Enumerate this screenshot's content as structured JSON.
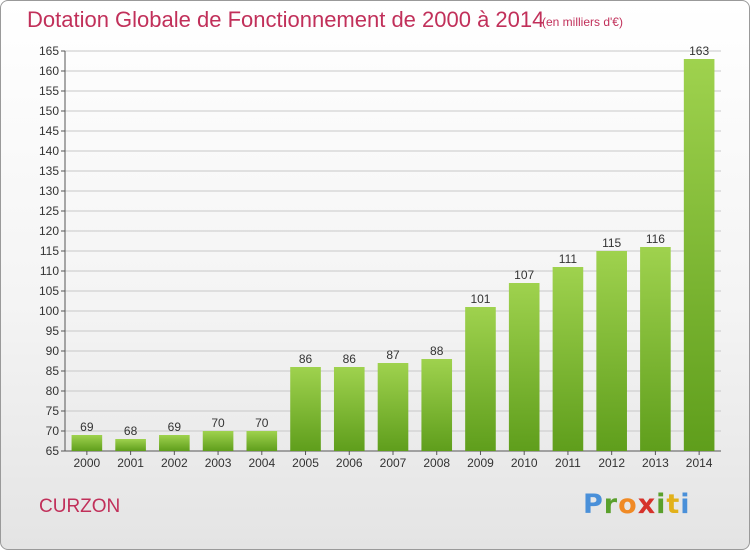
{
  "header": {
    "title": "Dotation Globale de Fonctionnement de 2000 à 2014",
    "unit": "(en milliers d'€)"
  },
  "footer": {
    "commune": "CURZON",
    "logo": {
      "letters": [
        "P",
        "r",
        "o",
        "x",
        "i",
        "t",
        "i"
      ],
      "colors": [
        "#4a90d9",
        "#5aa02c",
        "#f08a24",
        "#d6322b",
        "#5aa02c",
        "#e2b11a",
        "#4a90d9"
      ]
    }
  },
  "chart_data": {
    "type": "bar",
    "title": "Dotation Globale de Fonctionnement de 2000 à 2014",
    "ylabel": "",
    "xlabel": "",
    "categories": [
      "2000",
      "2001",
      "2002",
      "2003",
      "2004",
      "2005",
      "2006",
      "2007",
      "2008",
      "2009",
      "2010",
      "2011",
      "2012",
      "2013",
      "2014"
    ],
    "values": [
      69,
      68,
      69,
      70,
      70,
      86,
      86,
      87,
      88,
      101,
      107,
      111,
      115,
      116,
      163
    ],
    "ylim": [
      65,
      165
    ],
    "yticks": [
      65,
      70,
      75,
      80,
      85,
      90,
      95,
      100,
      105,
      110,
      115,
      120,
      125,
      130,
      135,
      140,
      145,
      150,
      155,
      160,
      165
    ],
    "grid": true,
    "bar_color_top": "#9fd24e",
    "bar_color_bottom": "#5f9e1c",
    "grid_color": "#c8c8c8"
  }
}
